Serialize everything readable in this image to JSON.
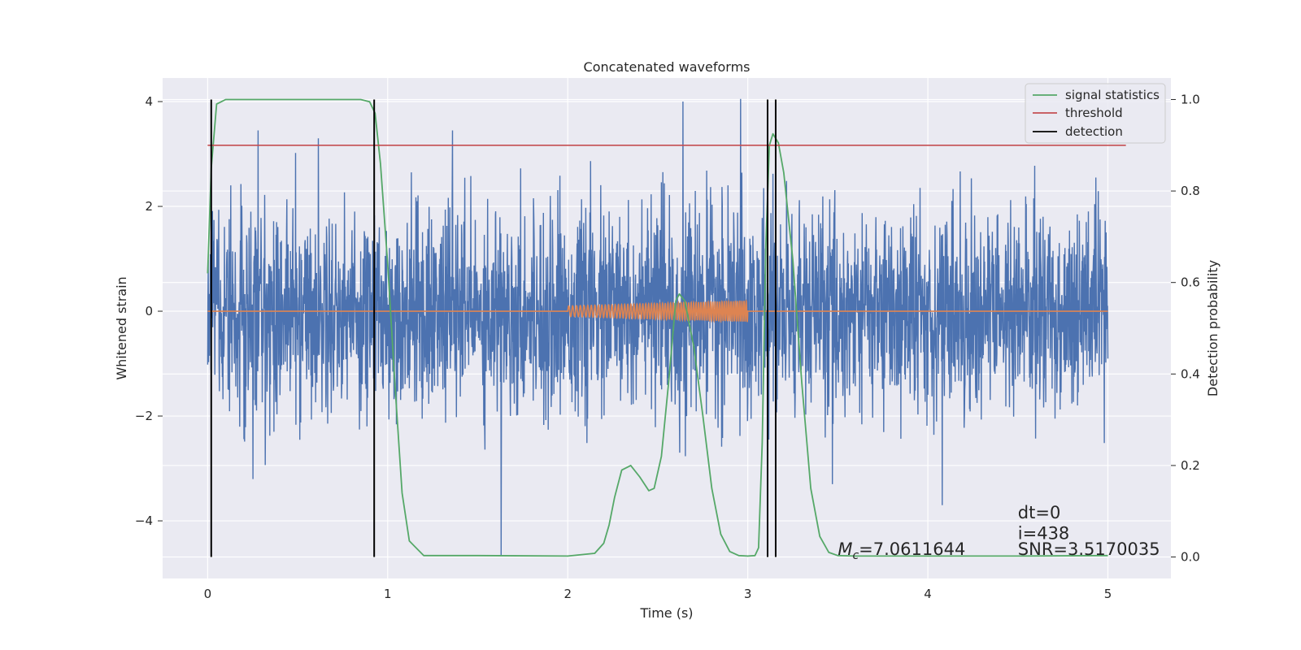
{
  "chart_data": {
    "type": "line",
    "title": "Concatenated waveforms",
    "xlabel": "Time (s)",
    "ylabel": "Whitened strain",
    "y2label": "Detection probability",
    "xlim": [
      -0.25,
      5.35
    ],
    "ylim": [
      -5.1,
      4.45
    ],
    "y2lim": [
      -0.047,
      1.047
    ],
    "grid": true,
    "legend_position": "top-right",
    "x_ticks": [
      "0",
      "1",
      "2",
      "3",
      "4",
      "5"
    ],
    "x_tick_values": [
      0,
      1,
      2,
      3,
      4,
      5
    ],
    "y_ticks": [
      "−4",
      "−2",
      "0",
      "2",
      "4"
    ],
    "y_tick_values": [
      -4,
      -2,
      0,
      2,
      4
    ],
    "y2_ticks": [
      "0.0",
      "0.2",
      "0.4",
      "0.6",
      "0.8",
      "1.0"
    ],
    "y2_tick_values": [
      0.0,
      0.2,
      0.4,
      0.6,
      0.8,
      1.0
    ],
    "series": [
      {
        "name": "",
        "axis": "left",
        "kind": "whitened strain noise",
        "x_range": [
          0,
          5
        ],
        "amplitude_std": 0.95,
        "max_peaks": [
          {
            "x": 0.28,
            "y": 3.45
          },
          {
            "x": 1.36,
            "y": 3.45
          },
          {
            "x": 2.64,
            "y": 4.0
          },
          {
            "x": 2.96,
            "y": 4.05
          }
        ],
        "min_peaks": [
          {
            "x": 1.63,
            "y": -4.65
          },
          {
            "x": 4.08,
            "y": -3.7
          },
          {
            "x": 3.47,
            "y": -3.3
          }
        ]
      },
      {
        "name": "",
        "axis": "left",
        "kind": "injected chirp",
        "x": [
          0,
          2,
          2,
          3,
          3,
          5
        ],
        "y": [
          0,
          0,
          0.1,
          0.2,
          0,
          0
        ],
        "chirp_range": [
          2,
          3
        ],
        "amplitude_start": 0.1,
        "amplitude_end": 0.2
      },
      {
        "name": "signal statistics",
        "axis": "right",
        "x": [
          0,
          0.02,
          0.05,
          0.1,
          0.3,
          0.6,
          0.85,
          0.9,
          0.93,
          0.96,
          1.0,
          1.04,
          1.08,
          1.12,
          1.2,
          1.5,
          2.0,
          2.15,
          2.2,
          2.23,
          2.26,
          2.3,
          2.35,
          2.4,
          2.45,
          2.48,
          2.52,
          2.56,
          2.6,
          2.62,
          2.65,
          2.7,
          2.75,
          2.8,
          2.85,
          2.9,
          2.95,
          3.0,
          3.04,
          3.06,
          3.08,
          3.1,
          3.12,
          3.14,
          3.17,
          3.2,
          3.25,
          3.3,
          3.35,
          3.4,
          3.45,
          3.5,
          3.6,
          4.0,
          4.5,
          5.0
        ],
        "y": [
          0.62,
          0.85,
          0.99,
          1.0,
          1.0,
          1.0,
          1.0,
          0.995,
          0.97,
          0.86,
          0.64,
          0.38,
          0.14,
          0.035,
          0.003,
          0.003,
          0.002,
          0.008,
          0.03,
          0.07,
          0.13,
          0.19,
          0.2,
          0.175,
          0.145,
          0.15,
          0.22,
          0.38,
          0.56,
          0.575,
          0.56,
          0.46,
          0.31,
          0.15,
          0.05,
          0.012,
          0.003,
          0.002,
          0.003,
          0.02,
          0.25,
          0.68,
          0.9,
          0.925,
          0.905,
          0.84,
          0.65,
          0.38,
          0.15,
          0.045,
          0.01,
          0.003,
          0.002,
          0.002,
          0.002,
          0.003
        ],
        "color": "#55a868"
      },
      {
        "name": "threshold",
        "axis": "right",
        "x": [
          0,
          5.1
        ],
        "y": [
          0.9,
          0.9
        ],
        "color": "#c44e52"
      }
    ],
    "detections": {
      "name": "detection",
      "axis": "right",
      "x": [
        0.02,
        0.925,
        3.11,
        3.155
      ],
      "y_range": [
        0,
        1.0
      ],
      "color": "#000000"
    },
    "legend": [
      {
        "label": "signal statistics",
        "color": "#55a868"
      },
      {
        "label": "threshold",
        "color": "#c44e52"
      },
      {
        "label": "detection",
        "color": "#000000"
      }
    ],
    "annotations": [
      {
        "text": "dt=0",
        "x": 4.5,
        "y": -3.95
      },
      {
        "text": "i=438",
        "x": 4.5,
        "y": -4.35
      },
      {
        "text": "SNR=3.5170035",
        "x": 4.5,
        "y": -4.65
      },
      {
        "text_prefix": "M",
        "text_sub": "c",
        "text_suffix": "=7.0611644",
        "x": 3.5,
        "y": -4.65
      }
    ],
    "colors": {
      "strain": "#4c72b0",
      "chirp": "#dd8452",
      "background": "#eaeaf2",
      "grid": "#ffffff"
    }
  }
}
